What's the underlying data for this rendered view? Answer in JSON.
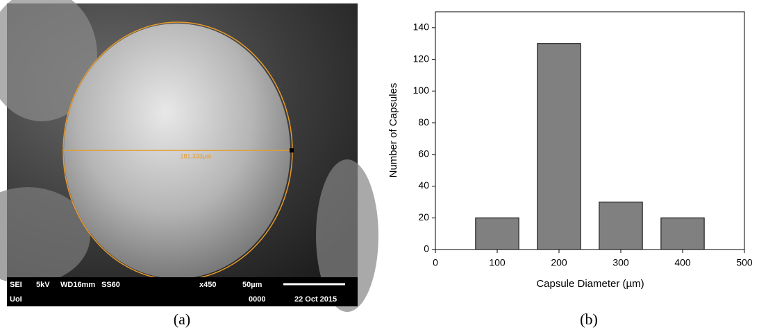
{
  "sem_image": {
    "measurement_label": "181.333µm",
    "info_bar": [
      "SEI",
      "5kV",
      "WD16mm",
      "SS60",
      "x450",
      "50µm",
      "UoI",
      "0000",
      "22 Oct 2015"
    ],
    "caption": "(a)"
  },
  "chart_caption": "(b)",
  "chart_data": {
    "type": "bar",
    "x_label": "Capsule Diameter (µm)",
    "y_label": "Number of Capsules",
    "x": [
      100,
      200,
      300,
      400
    ],
    "values": [
      20,
      130,
      30,
      20
    ],
    "color": "#808080",
    "xlim": [
      0,
      500
    ],
    "xticks": [
      0,
      100,
      200,
      300,
      400,
      500
    ],
    "ylim": [
      0,
      150
    ],
    "yticks": [
      0,
      20,
      40,
      60,
      80,
      100,
      120,
      140
    ]
  }
}
